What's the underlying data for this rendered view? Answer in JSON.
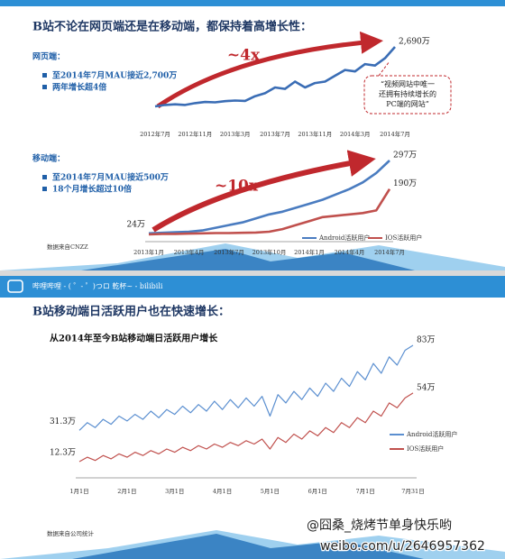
{
  "slides": [
    {
      "title": "B站不论在网页端还是在移动端，都保持着高增长性：",
      "sections": [
        {
          "label": "网页端：",
          "bullets": [
            "至2014年7月MAU接近2,700万",
            "两年增长超4倍"
          ]
        },
        {
          "label": "移动端：",
          "bullets": [
            "至2014年7月MAU接近500万",
            "18个月增长超过10倍"
          ]
        }
      ],
      "callout": [
        "“视频网站中唯一",
        "还拥有持续增长的",
        "PC端的网站”"
      ],
      "source": "数据来自CNZZ"
    },
    {
      "header": "哔哩哔哩 - ( ゜- ゜)つロ 乾杯~ - bilibili",
      "title": "B站移动端日活跃用户也在快速增长：",
      "source": "数据来自公司统计"
    }
  ],
  "watermark": [
    "@囧桑_烧烤节单身快乐哟",
    "weibo.com/u/2646957362"
  ],
  "chart_data": [
    {
      "type": "line",
      "annotation": "~4x",
      "categories": [
        "2012年7月",
        null,
        null,
        null,
        "2012年11月",
        null,
        null,
        null,
        "2013年3月",
        null,
        null,
        null,
        "2013年7月",
        null,
        null,
        null,
        "2013年11月",
        null,
        null,
        null,
        "2014年3月",
        null,
        null,
        null,
        "2014年7月"
      ],
      "values": [
        650,
        700,
        720,
        700,
        760,
        800,
        790,
        830,
        850,
        840,
        1000,
        1100,
        1300,
        1250,
        1500,
        1300,
        1450,
        1500,
        1700,
        1900,
        1850,
        2100,
        2050,
        2300,
        2690
      ],
      "value_labels": [
        null,
        null,
        null,
        null,
        null,
        null,
        null,
        null,
        null,
        null,
        null,
        null,
        null,
        null,
        null,
        null,
        null,
        null,
        null,
        null,
        null,
        null,
        null,
        null,
        "2,690万"
      ],
      "color": "#3a6db5"
    },
    {
      "type": "line",
      "annotation": "~10x",
      "categories": [
        "2013年1月",
        null,
        null,
        "2013年4月",
        null,
        null,
        "2013年7月",
        null,
        null,
        "2013年10月",
        null,
        null,
        "2014年1月",
        null,
        null,
        "2014年4月",
        null,
        null,
        "2014年7月"
      ],
      "series": [
        {
          "name": "Android活跃用户",
          "color": "#4a7cc0",
          "values": [
            24,
            26,
            28,
            30,
            35,
            45,
            55,
            65,
            80,
            95,
            105,
            120,
            135,
            150,
            170,
            190,
            215,
            250,
            297
          ],
          "value_labels": [
            "24万",
            null,
            null,
            null,
            null,
            null,
            null,
            null,
            null,
            null,
            null,
            null,
            null,
            null,
            null,
            null,
            null,
            null,
            "297万"
          ]
        },
        {
          "name": "IOS活跃用户",
          "color": "#c0504d",
          "values": [
            20,
            22,
            22,
            23,
            24,
            25,
            25,
            26,
            27,
            30,
            40,
            55,
            70,
            85,
            90,
            95,
            100,
            110,
            190
          ],
          "value_labels": [
            null,
            null,
            null,
            null,
            null,
            null,
            null,
            null,
            null,
            null,
            null,
            null,
            null,
            null,
            null,
            null,
            null,
            null,
            "190万"
          ]
        }
      ]
    },
    {
      "type": "line",
      "title": "从2014年至今B站移动端日活跃用户增长",
      "categories": [
        "1月1日",
        null,
        null,
        null,
        null,
        null,
        "2月1日",
        null,
        null,
        null,
        null,
        null,
        "3月1日",
        null,
        null,
        null,
        null,
        null,
        "4月1日",
        null,
        null,
        null,
        null,
        null,
        "5月1日",
        null,
        null,
        null,
        null,
        null,
        "6月1日",
        null,
        null,
        null,
        null,
        null,
        "7月1日",
        null,
        null,
        null,
        null,
        null,
        "7月31日"
      ],
      "series": [
        {
          "name": "Android活跃用户",
          "color": "#5b8fd0",
          "values": [
            31.3,
            36,
            33,
            38,
            35,
            40,
            37,
            41,
            38,
            43,
            39,
            44,
            41,
            46,
            42,
            47,
            43,
            49,
            44,
            50,
            45,
            51,
            46,
            52,
            40,
            53,
            48,
            55,
            50,
            57,
            52,
            60,
            55,
            63,
            58,
            67,
            62,
            72,
            66,
            76,
            71,
            80,
            83
          ],
          "value_labels": [
            "31.3万",
            null,
            null,
            null,
            null,
            null,
            null,
            null,
            null,
            null,
            null,
            null,
            null,
            null,
            null,
            null,
            null,
            null,
            null,
            null,
            null,
            null,
            null,
            null,
            null,
            null,
            null,
            null,
            null,
            null,
            null,
            null,
            null,
            null,
            null,
            null,
            null,
            null,
            null,
            null,
            null,
            null,
            "83万"
          ]
        },
        {
          "name": "IOS活跃用户",
          "color": "#c0504d",
          "values": [
            12.3,
            15,
            13,
            16,
            14,
            17,
            15,
            18,
            16,
            19,
            17,
            20,
            18,
            21,
            19,
            22,
            20,
            23,
            21,
            24,
            22,
            25,
            23,
            26,
            20,
            27,
            24,
            29,
            26,
            31,
            28,
            33,
            30,
            36,
            33,
            39,
            36,
            43,
            40,
            48,
            45,
            51,
            54
          ],
          "value_labels": [
            "12.3万",
            null,
            null,
            null,
            null,
            null,
            null,
            null,
            null,
            null,
            null,
            null,
            null,
            null,
            null,
            null,
            null,
            null,
            null,
            null,
            null,
            null,
            null,
            null,
            null,
            null,
            null,
            null,
            null,
            null,
            null,
            null,
            null,
            null,
            null,
            null,
            null,
            null,
            null,
            null,
            null,
            null,
            "54万"
          ]
        }
      ]
    }
  ]
}
